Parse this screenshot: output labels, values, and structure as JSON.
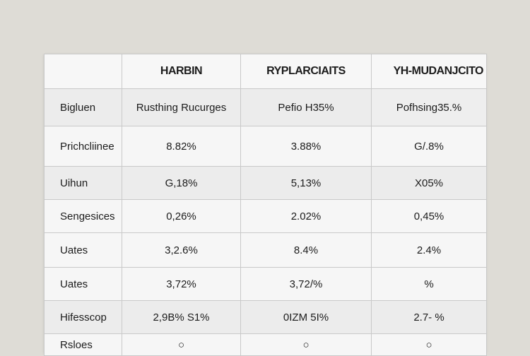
{
  "table": {
    "headers": [
      "",
      "HARBIN",
      "RYPLARCIAITS",
      "YH-MUDANJCITO"
    ],
    "rows": [
      {
        "label": "Bigluen",
        "cells": [
          "Rusthing Rucurges",
          "Pefio H35%",
          "Pofhsing35.%"
        ]
      },
      {
        "label": "Prichcliinee",
        "cells": [
          "8.82%",
          "3.88%",
          "G/.8%"
        ]
      },
      {
        "label": "Uihun",
        "cells": [
          "G,18%",
          "5,13%",
          "X05%"
        ]
      },
      {
        "label": "Sengesices",
        "cells": [
          "0,26%",
          "2.02%",
          "0,45%"
        ]
      },
      {
        "label": "Uates",
        "cells": [
          "3,2.6%",
          "8.4%",
          "2.4%"
        ]
      },
      {
        "label": "Uates",
        "cells": [
          "3,72%",
          "3,72/%",
          "%"
        ]
      },
      {
        "label": "Hifesscop",
        "cells": [
          "2,9B% S1%",
          "0IZM 5I%",
          "2.7- %"
        ]
      },
      {
        "label": "Rsloes",
        "cells": [
          "○",
          "○",
          "○"
        ]
      }
    ]
  }
}
